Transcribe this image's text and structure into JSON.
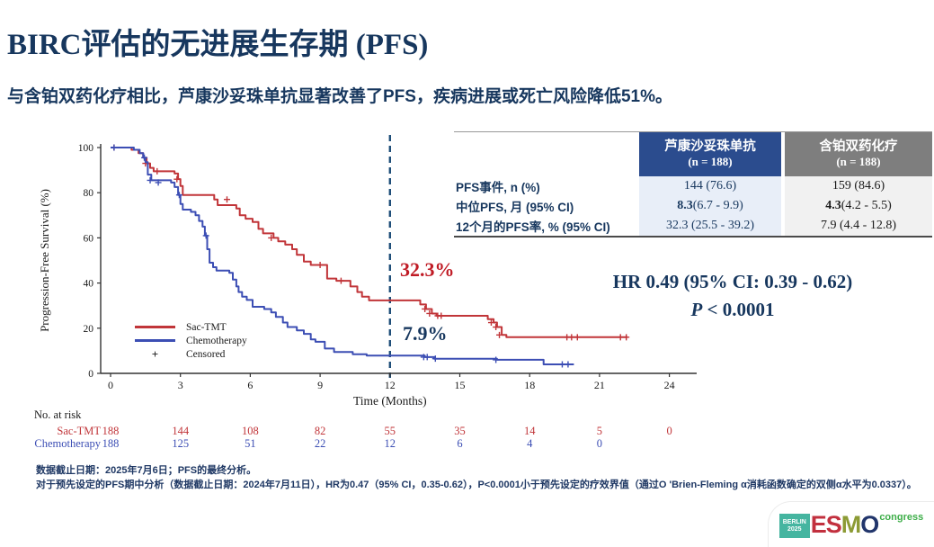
{
  "header": {
    "title": "BIRC评估的无进展生存期 (PFS)",
    "subtitle": "与含铂双药化疗相比，芦康沙妥珠单抗显著改善了PFS，疾病进展或死亡风险降低51%。"
  },
  "chart_data": {
    "type": "line",
    "subtype": "kaplan-meier-step",
    "xlabel": "Time (Months)",
    "ylabel": "Progression-Free Survival (%)",
    "xlim": [
      0,
      25.5
    ],
    "ylim": [
      0,
      100
    ],
    "xticks": [
      0,
      3,
      6,
      9,
      12,
      15,
      18,
      21,
      24
    ],
    "yticks": [
      0,
      20,
      40,
      60,
      80,
      100
    ],
    "grid": false,
    "reference_line": {
      "x": 12,
      "style": "dashed",
      "color": "#1F4E79"
    },
    "series": [
      {
        "name": "Sac-TMT",
        "color": "#C13539",
        "steps": [
          [
            0,
            100
          ],
          [
            0.9,
            99
          ],
          [
            1.2,
            97.5
          ],
          [
            1.4,
            95.5
          ],
          [
            1.55,
            93
          ],
          [
            1.7,
            91
          ],
          [
            1.85,
            89.5
          ],
          [
            2.75,
            88.5
          ],
          [
            2.9,
            86
          ],
          [
            3.0,
            83
          ],
          [
            3.1,
            79
          ],
          [
            4.45,
            77
          ],
          [
            4.6,
            74.5
          ],
          [
            5.4,
            73
          ],
          [
            5.55,
            70
          ],
          [
            5.8,
            68.5
          ],
          [
            6.1,
            67
          ],
          [
            6.35,
            64
          ],
          [
            6.55,
            62
          ],
          [
            7.0,
            60
          ],
          [
            7.2,
            58.5
          ],
          [
            7.5,
            57
          ],
          [
            7.8,
            55
          ],
          [
            8.0,
            52.5
          ],
          [
            8.3,
            49.5
          ],
          [
            8.6,
            48
          ],
          [
            9.3,
            42
          ],
          [
            9.7,
            41
          ],
          [
            10.3,
            38.5
          ],
          [
            10.6,
            36
          ],
          [
            10.8,
            34
          ],
          [
            11.1,
            32.3
          ],
          [
            13.3,
            30.5
          ],
          [
            13.55,
            28.5
          ],
          [
            13.8,
            26.5
          ],
          [
            14.0,
            25.5
          ],
          [
            16.2,
            24
          ],
          [
            16.45,
            22.5
          ],
          [
            16.6,
            20.5
          ],
          [
            16.8,
            17
          ],
          [
            17.0,
            16
          ],
          [
            22.2,
            16
          ]
        ],
        "censors": [
          [
            0.15,
            100
          ],
          [
            1.5,
            93
          ],
          [
            2.0,
            89.5
          ],
          [
            2.85,
            86
          ],
          [
            5.0,
            77
          ],
          [
            6.9,
            60
          ],
          [
            9.0,
            48
          ],
          [
            9.9,
            41
          ],
          [
            13.5,
            28.5
          ],
          [
            13.7,
            26.5
          ],
          [
            14.05,
            25.5
          ],
          [
            14.2,
            25.5
          ],
          [
            16.35,
            22.5
          ],
          [
            16.55,
            20.5
          ],
          [
            16.7,
            17
          ],
          [
            19.6,
            16
          ],
          [
            19.8,
            16
          ],
          [
            20.05,
            16
          ],
          [
            21.9,
            16
          ],
          [
            22.15,
            16
          ]
        ]
      },
      {
        "name": "Chemotherapy",
        "color": "#3C4EB4",
        "steps": [
          [
            0,
            100
          ],
          [
            1.0,
            99
          ],
          [
            1.25,
            97.5
          ],
          [
            1.4,
            95.5
          ],
          [
            1.5,
            93.5
          ],
          [
            1.6,
            88
          ],
          [
            1.75,
            85.5
          ],
          [
            2.6,
            84.5
          ],
          [
            2.75,
            82.5
          ],
          [
            2.9,
            79
          ],
          [
            3.0,
            75
          ],
          [
            3.1,
            72.5
          ],
          [
            3.45,
            71.5
          ],
          [
            3.65,
            70
          ],
          [
            3.8,
            67.5
          ],
          [
            3.95,
            65
          ],
          [
            4.05,
            61
          ],
          [
            4.15,
            55
          ],
          [
            4.25,
            49
          ],
          [
            4.4,
            47
          ],
          [
            4.55,
            45.5
          ],
          [
            5.1,
            44.5
          ],
          [
            5.25,
            41.5
          ],
          [
            5.4,
            38.5
          ],
          [
            5.5,
            36
          ],
          [
            5.65,
            34
          ],
          [
            5.85,
            32.5
          ],
          [
            6.1,
            29.5
          ],
          [
            6.6,
            28.5
          ],
          [
            6.9,
            27
          ],
          [
            7.1,
            25
          ],
          [
            7.4,
            22.5
          ],
          [
            7.6,
            20.5
          ],
          [
            8.0,
            19
          ],
          [
            8.3,
            17.5
          ],
          [
            8.6,
            15
          ],
          [
            8.8,
            14
          ],
          [
            9.2,
            11
          ],
          [
            9.6,
            9.5
          ],
          [
            10.4,
            8.5
          ],
          [
            11.0,
            7.9
          ],
          [
            13.5,
            7.2
          ],
          [
            13.9,
            6.5
          ],
          [
            16.6,
            6
          ],
          [
            18.6,
            4
          ],
          [
            19.9,
            4
          ]
        ],
        "censors": [
          [
            0.15,
            100
          ],
          [
            1.45,
            95.5
          ],
          [
            1.7,
            85.5
          ],
          [
            2.05,
            84.5
          ],
          [
            2.95,
            79
          ],
          [
            4.1,
            61
          ],
          [
            13.45,
            7.2
          ],
          [
            13.6,
            7.2
          ],
          [
            13.95,
            6.5
          ],
          [
            16.55,
            6
          ],
          [
            19.4,
            4
          ],
          [
            19.65,
            4
          ]
        ]
      }
    ],
    "annotations": [
      {
        "text": "32.3%",
        "color": "#C01B25",
        "x": 12.5,
        "y": 45
      },
      {
        "text": "7.9%",
        "color": "#17375E",
        "x": 12.6,
        "y": 14
      }
    ],
    "legend_position": "lower-left"
  },
  "legend": {
    "items": [
      {
        "label": "Sac-TMT",
        "swatch": "line",
        "color": "#C13539"
      },
      {
        "label": "Chemotherapy",
        "swatch": "line",
        "color": "#3C4EB4"
      },
      {
        "label": "Censored",
        "swatch": "plus",
        "color": "#1a1a1a"
      }
    ]
  },
  "stats": {
    "hr_line": "HR 0.49 (95% CI: 0.39 - 0.62)",
    "p_prefix": "P",
    "p_rest": " < 0.0001"
  },
  "table": {
    "col1_header": "芦康沙妥珠单抗",
    "col1_n": "(n = 188)",
    "col2_header": "含铂双药化疗",
    "col2_n": "(n = 188)",
    "row1": {
      "label": "PFS事件, n (%)",
      "v1": "144 (76.6)",
      "v2": "159 (84.6)"
    },
    "row2": {
      "label": "中位PFS, 月 (95% CI)",
      "v1_bold": "8.3",
      "v1_rest": " (6.7 - 9.9)",
      "v2_bold": "4.3",
      "v2_rest": " (4.2 - 5.5)"
    },
    "row3": {
      "label": "12个月的PFS率, % (95% CI)",
      "v1": "32.3 (25.5 - 39.2)",
      "v2": "7.9 (4.4 - 12.8)"
    }
  },
  "at_risk": {
    "title": "No. at risk",
    "months": [
      0,
      3,
      6,
      9,
      12,
      15,
      18,
      21,
      24
    ],
    "rows": [
      {
        "label": "Sac-TMT",
        "color": "#C13539",
        "values": [
          "188",
          "144",
          "108",
          "82",
          "55",
          "35",
          "14",
          "5",
          "0"
        ]
      },
      {
        "label": "Chemotherapy",
        "color": "#3C4EB4",
        "values": [
          "188",
          "125",
          "51",
          "22",
          "12",
          "6",
          "4",
          "0"
        ]
      }
    ]
  },
  "footnotes": {
    "line1": "数据截止日期：2025年7月6日；PFS的最终分析。",
    "line2": "对于预先设定的PFS期中分析（数据截止日期：2024年7月11日），HR为0.47（95% CI，0.35-0.62），P<0.0001小于预先设定的疗效界值（通过O 'Brien-Fleming α消耗函数确定的双侧α水平为0.0337）。"
  },
  "logo": {
    "badge_line1": "BERLIN",
    "badge_line2": "2025",
    "badge_color": "#45B5A0",
    "letters": [
      {
        "ch": "E",
        "color": "#C2303E"
      },
      {
        "ch": "S",
        "color": "#C2303E"
      },
      {
        "ch": "M",
        "color": "#8C9B35"
      },
      {
        "ch": "O",
        "color": "#21356B"
      }
    ],
    "congress": "congress",
    "congress_color": "#3EAE49"
  }
}
